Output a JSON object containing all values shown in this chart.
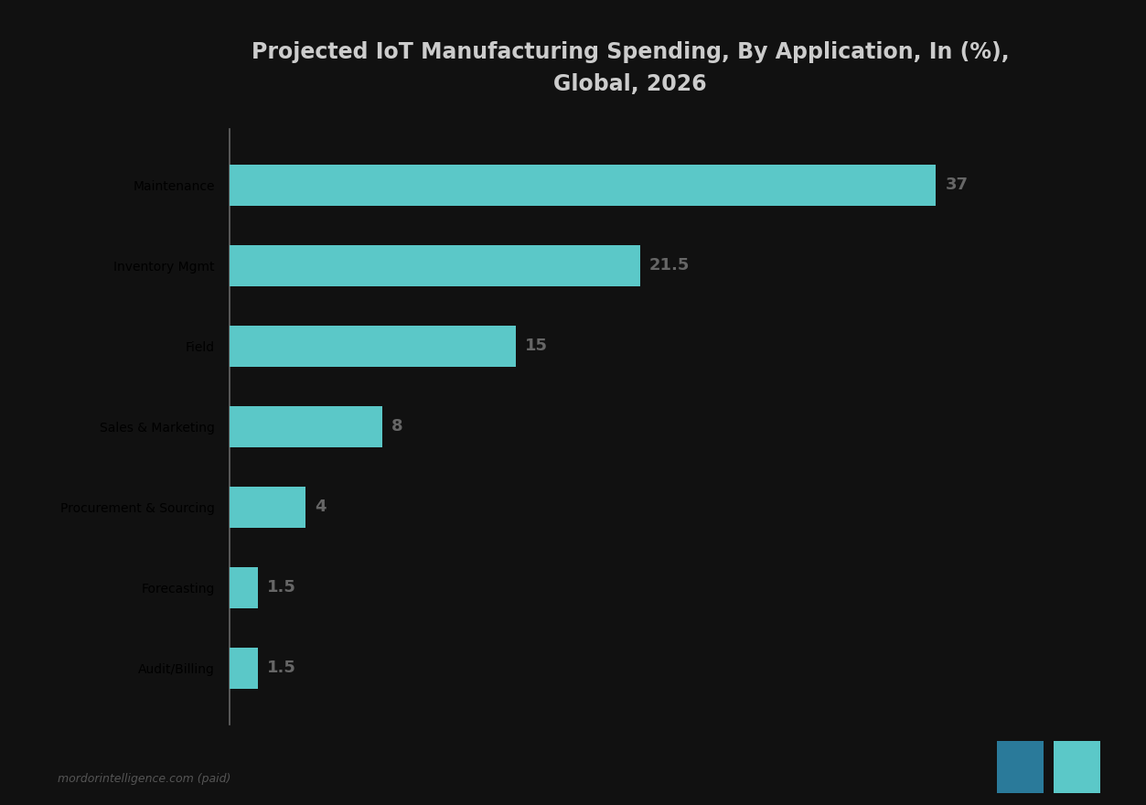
{
  "title_line1": "Projected IoT Manufacturing Spending, By Application, In (%),",
  "title_line2": "Global, 2026",
  "categories": [
    "Maintenance",
    "Inventory Mgmt",
    "Field",
    "Sales & Marketing",
    "Procurement & Sourcing",
    "Forecasting",
    "Audit/Billing"
  ],
  "values": [
    37,
    21.5,
    15,
    8,
    4,
    1.5,
    1.5
  ],
  "bar_color": "#5bc8c8",
  "value_labels": [
    "37",
    "21.5",
    "15",
    "8",
    "4",
    "1.5",
    "1.5"
  ],
  "background_color": "#111111",
  "title_color": "#cccccc",
  "label_color": "#777777",
  "value_color": "#666666",
  "axis_line_color": "#666666",
  "bar_height": 0.52,
  "xlim": [
    0,
    42
  ],
  "legend_text": "mordorintelligence.com (paid)",
  "logo_color_left": "#2a7a9a",
  "logo_color_right": "#5bc8c8"
}
